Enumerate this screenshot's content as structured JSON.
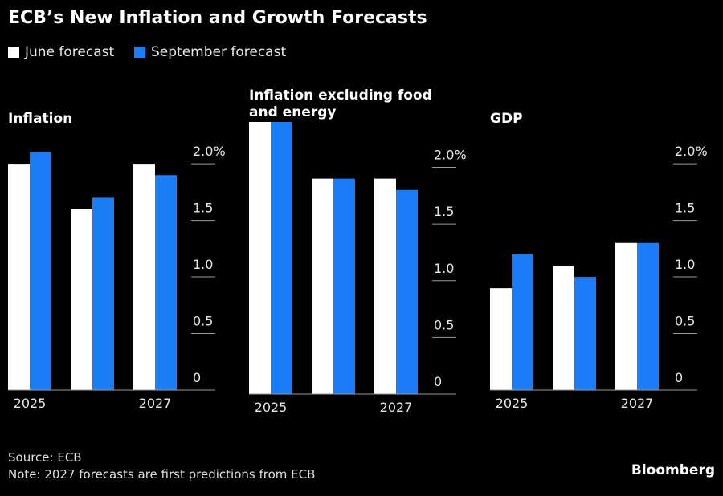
{
  "title": "ECB’s New Inflation and Growth Forecasts",
  "source": "Source: ECB",
  "note": "Note: 2027 forecasts are first predictions from ECB",
  "logo": "Bloomberg",
  "chart_data": [
    {
      "type": "bar",
      "title": "Inflation",
      "categories": [
        "2025",
        null,
        "2027"
      ],
      "series": [
        {
          "name": "June forecast",
          "color": "#ffffff",
          "values": [
            2.0,
            1.6,
            2.0
          ]
        },
        {
          "name": "September forecast",
          "color": "#1a7cf7",
          "values": [
            2.1,
            1.7,
            1.9
          ]
        }
      ],
      "ylim": [
        0,
        2.1
      ],
      "yticks": [
        0,
        0.5,
        {
          "value": 1,
          "label": "1.0"
        },
        1.5,
        {
          "value": 2,
          "label": "2.0%"
        }
      ]
    },
    {
      "type": "bar",
      "title": "Inflation excluding food and energy",
      "categories": [
        "2025",
        null,
        "2027"
      ],
      "series": [
        {
          "name": "June forecast",
          "color": "#ffffff",
          "values": [
            2.4,
            1.9,
            1.9
          ]
        },
        {
          "name": "September forecast",
          "color": "#1a7cf7",
          "values": [
            2.4,
            1.9,
            1.8
          ]
        }
      ],
      "ylim": [
        0,
        2.4
      ],
      "yticks": [
        0,
        0.5,
        {
          "value": 1,
          "label": "1.0"
        },
        1.5,
        {
          "value": 2,
          "label": "2.0%"
        }
      ]
    },
    {
      "type": "bar",
      "title": "GDP",
      "categories": [
        "2025",
        null,
        "2027"
      ],
      "series": [
        {
          "name": "June forecast",
          "color": "#ffffff",
          "values": [
            0.9,
            1.1,
            1.3
          ]
        },
        {
          "name": "September forecast",
          "color": "#1a7cf7",
          "values": [
            1.2,
            1.0,
            1.3
          ]
        }
      ],
      "ylim": [
        0,
        2.1
      ],
      "yticks": [
        0,
        0.5,
        {
          "value": 1,
          "label": "1.0"
        },
        1.5,
        {
          "value": 2,
          "label": "2.0%"
        }
      ]
    }
  ]
}
